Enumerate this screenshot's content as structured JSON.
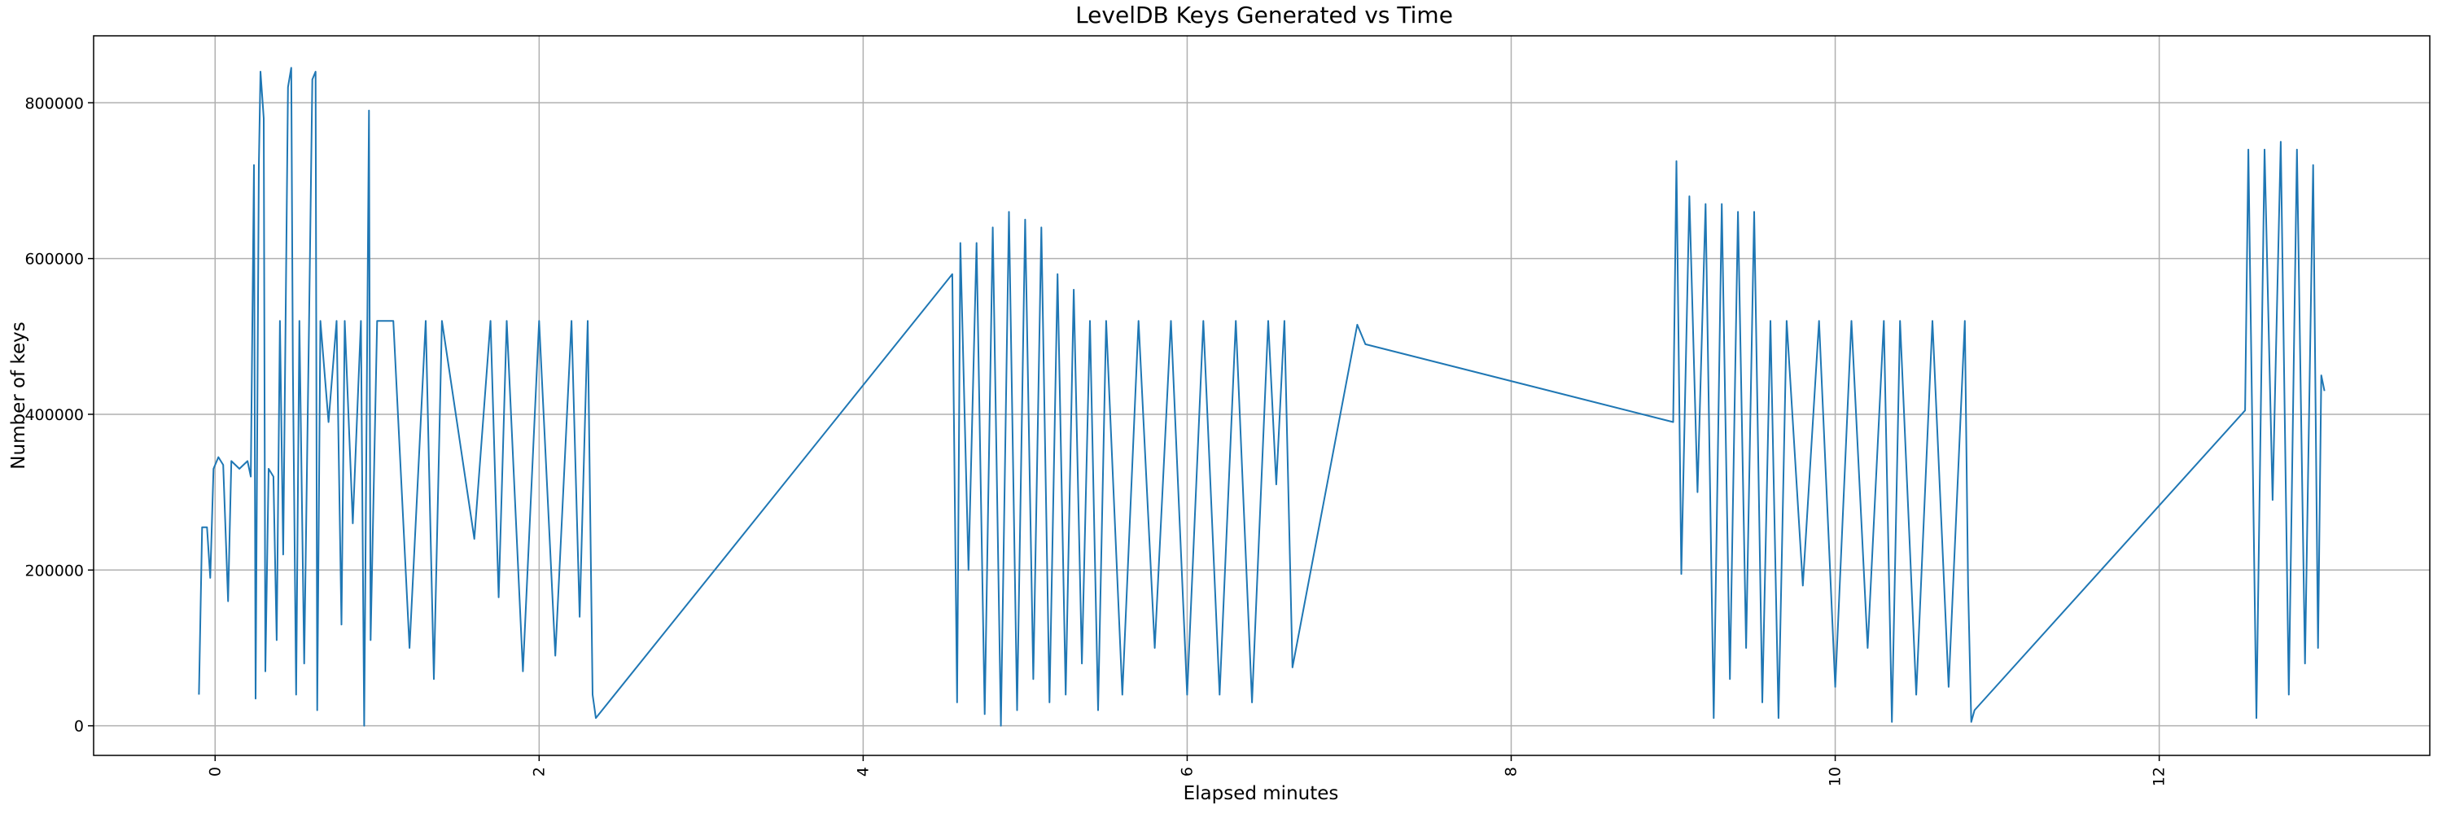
{
  "chart_data": {
    "type": "line",
    "title": "LevelDB Keys Generated vs Time",
    "xlabel": "Elapsed minutes",
    "ylabel": "Number of keys",
    "x": [
      -0.1,
      -0.08,
      -0.05,
      -0.03,
      -0.01,
      0.02,
      0.05,
      0.08,
      0.1,
      0.15,
      0.2,
      0.22,
      0.24,
      0.25,
      0.27,
      0.28,
      0.3,
      0.31,
      0.33,
      0.36,
      0.38,
      0.4,
      0.42,
      0.45,
      0.47,
      0.48,
      0.5,
      0.52,
      0.55,
      0.58,
      0.6,
      0.62,
      0.63,
      0.65,
      0.7,
      0.75,
      0.78,
      0.8,
      0.85,
      0.9,
      0.92,
      0.95,
      0.96,
      1.0,
      1.1,
      1.2,
      1.3,
      1.35,
      1.4,
      1.6,
      1.7,
      1.75,
      1.8,
      1.9,
      2.0,
      2.1,
      2.2,
      2.25,
      2.3,
      2.33,
      2.35,
      4.55,
      4.58,
      4.6,
      4.65,
      4.7,
      4.75,
      4.8,
      4.85,
      4.9,
      4.95,
      5.0,
      5.05,
      5.1,
      5.15,
      5.2,
      5.25,
      5.3,
      5.35,
      5.4,
      5.45,
      5.5,
      5.6,
      5.7,
      5.8,
      5.9,
      6.0,
      6.1,
      6.2,
      6.3,
      6.4,
      6.5,
      6.55,
      6.6,
      6.65,
      7.05,
      7.1,
      9.0,
      9.02,
      9.05,
      9.1,
      9.15,
      9.2,
      9.25,
      9.3,
      9.35,
      9.4,
      9.45,
      9.5,
      9.55,
      9.6,
      9.65,
      9.7,
      9.8,
      9.9,
      10.0,
      10.1,
      10.2,
      10.3,
      10.35,
      10.4,
      10.5,
      10.6,
      10.7,
      10.8,
      10.82,
      10.84,
      10.86,
      12.53,
      12.55,
      12.6,
      12.65,
      12.7,
      12.75,
      12.8,
      12.85,
      12.9,
      12.95,
      12.98,
      13.0,
      13.02
    ],
    "series": [
      {
        "name": "Number of keys",
        "color": "#1f77b4",
        "values": [
          40000,
          255000,
          255000,
          190000,
          330000,
          345000,
          335000,
          160000,
          340000,
          330000,
          340000,
          320000,
          720000,
          35000,
          720000,
          840000,
          780000,
          70000,
          330000,
          320000,
          110000,
          520000,
          220000,
          820000,
          845000,
          460000,
          40000,
          520000,
          80000,
          520000,
          830000,
          840000,
          20000,
          520000,
          390000,
          520000,
          130000,
          520000,
          260000,
          520000,
          0,
          790000,
          110000,
          520000,
          520000,
          100000,
          520000,
          60000,
          520000,
          240000,
          520000,
          165000,
          520000,
          70000,
          520000,
          90000,
          520000,
          140000,
          520000,
          40000,
          10000,
          580000,
          30000,
          620000,
          200000,
          620000,
          15000,
          640000,
          0,
          660000,
          20000,
          650000,
          60000,
          640000,
          30000,
          580000,
          40000,
          560000,
          80000,
          520000,
          20000,
          520000,
          40000,
          520000,
          100000,
          520000,
          40000,
          520000,
          40000,
          520000,
          30000,
          520000,
          310000,
          520000,
          75000,
          515000,
          490000,
          390000,
          725000,
          195000,
          680000,
          300000,
          670000,
          10000,
          670000,
          60000,
          660000,
          100000,
          660000,
          30000,
          520000,
          10000,
          520000,
          180000,
          520000,
          50000,
          520000,
          100000,
          520000,
          5000,
          520000,
          40000,
          520000,
          50000,
          520000,
          180000,
          5000,
          20000,
          405000,
          740000,
          10000,
          740000,
          290000,
          750000,
          40000,
          740000,
          80000,
          720000,
          100000,
          450000,
          430000
        ]
      }
    ],
    "xlim": [
      -0.75,
      13.67
    ],
    "ylim": [
      -38000,
      886000
    ],
    "xticks": [
      0,
      2,
      4,
      6,
      8,
      10,
      12
    ],
    "yticks": [
      0,
      200000,
      400000,
      600000,
      800000
    ],
    "grid": true
  }
}
